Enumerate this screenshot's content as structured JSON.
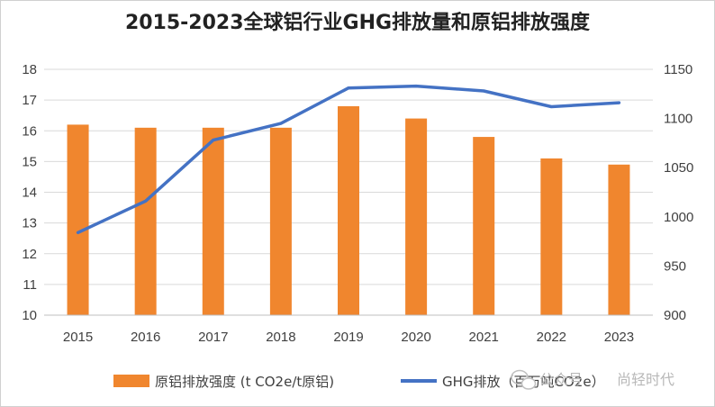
{
  "chart_data": {
    "type": "bar",
    "title": "2015-2023全球铝行业GHG排放量和原铝排放强度",
    "categories": [
      "2015",
      "2016",
      "2017",
      "2018",
      "2019",
      "2020",
      "2021",
      "2022",
      "2023"
    ],
    "series": [
      {
        "name": "原铝排放强度 (t CO2e/t原铝)",
        "type": "bar",
        "axis": "left",
        "color": "#f0862e",
        "values": [
          16.2,
          16.1,
          16.1,
          16.1,
          16.8,
          16.4,
          15.8,
          15.1,
          14.9
        ]
      },
      {
        "name": "GHG排放（百万吨CO2e）",
        "type": "line",
        "axis": "right",
        "color": "#4472c4",
        "values": [
          984,
          1016,
          1078,
          1095,
          1131,
          1133,
          1128,
          1112,
          1116
        ]
      }
    ],
    "y_left": {
      "min": 10,
      "max": 18,
      "step": 1
    },
    "y_right": {
      "min": 900,
      "max": 1150,
      "step": 50
    },
    "grid": true,
    "legend_position": "bottom"
  },
  "watermark": {
    "account": "公众号",
    "name": "尚轻时代"
  }
}
